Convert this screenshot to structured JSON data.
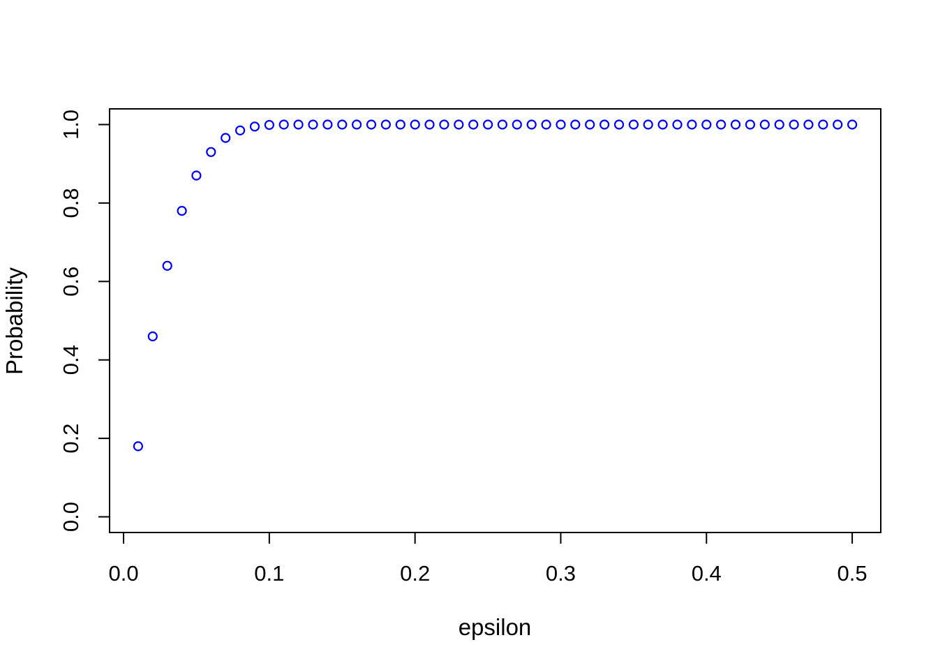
{
  "figure": {
    "background_color": "#ffffff",
    "axis_color": "#000000",
    "text_color": "#000000",
    "point_color": "#0000ff"
  },
  "chart_data": {
    "type": "scatter",
    "title": "",
    "xlabel": "epsilon",
    "ylabel": "Probability",
    "marker": "open-circle",
    "grid": false,
    "legend": null,
    "xlim": [
      -0.0096,
      0.5196
    ],
    "ylim": [
      -0.04,
      1.04
    ],
    "x_ticks": [
      0.0,
      0.1,
      0.2,
      0.3,
      0.4,
      0.5
    ],
    "x_tick_labels": [
      "0.0",
      "0.1",
      "0.2",
      "0.3",
      "0.4",
      "0.5"
    ],
    "y_ticks": [
      0.0,
      0.2,
      0.4,
      0.6,
      0.8,
      1.0
    ],
    "y_tick_labels": [
      "0.0",
      "0.2",
      "0.4",
      "0.6",
      "0.8",
      "1.0"
    ],
    "x": [
      0.01,
      0.02,
      0.03,
      0.04,
      0.05,
      0.06,
      0.07,
      0.08,
      0.09,
      0.1,
      0.11,
      0.12,
      0.13,
      0.14,
      0.15,
      0.16,
      0.17,
      0.18,
      0.19,
      0.2,
      0.21,
      0.22,
      0.23,
      0.24,
      0.25,
      0.26,
      0.27,
      0.28,
      0.29,
      0.3,
      0.31,
      0.32,
      0.33,
      0.34,
      0.35,
      0.36,
      0.37,
      0.38,
      0.39,
      0.4,
      0.41,
      0.42,
      0.43,
      0.44,
      0.45,
      0.46,
      0.47,
      0.48,
      0.49,
      0.5
    ],
    "y": [
      0.18,
      0.46,
      0.64,
      0.78,
      0.87,
      0.93,
      0.966,
      0.985,
      0.995,
      0.999,
      1.0,
      1.0,
      1.0,
      1.0,
      1.0,
      1.0,
      1.0,
      1.0,
      1.0,
      1.0,
      1.0,
      1.0,
      1.0,
      1.0,
      1.0,
      1.0,
      1.0,
      1.0,
      1.0,
      1.0,
      1.0,
      1.0,
      1.0,
      1.0,
      1.0,
      1.0,
      1.0,
      1.0,
      1.0,
      1.0,
      1.0,
      1.0,
      1.0,
      1.0,
      1.0,
      1.0,
      1.0,
      1.0,
      1.0,
      1.0
    ]
  }
}
